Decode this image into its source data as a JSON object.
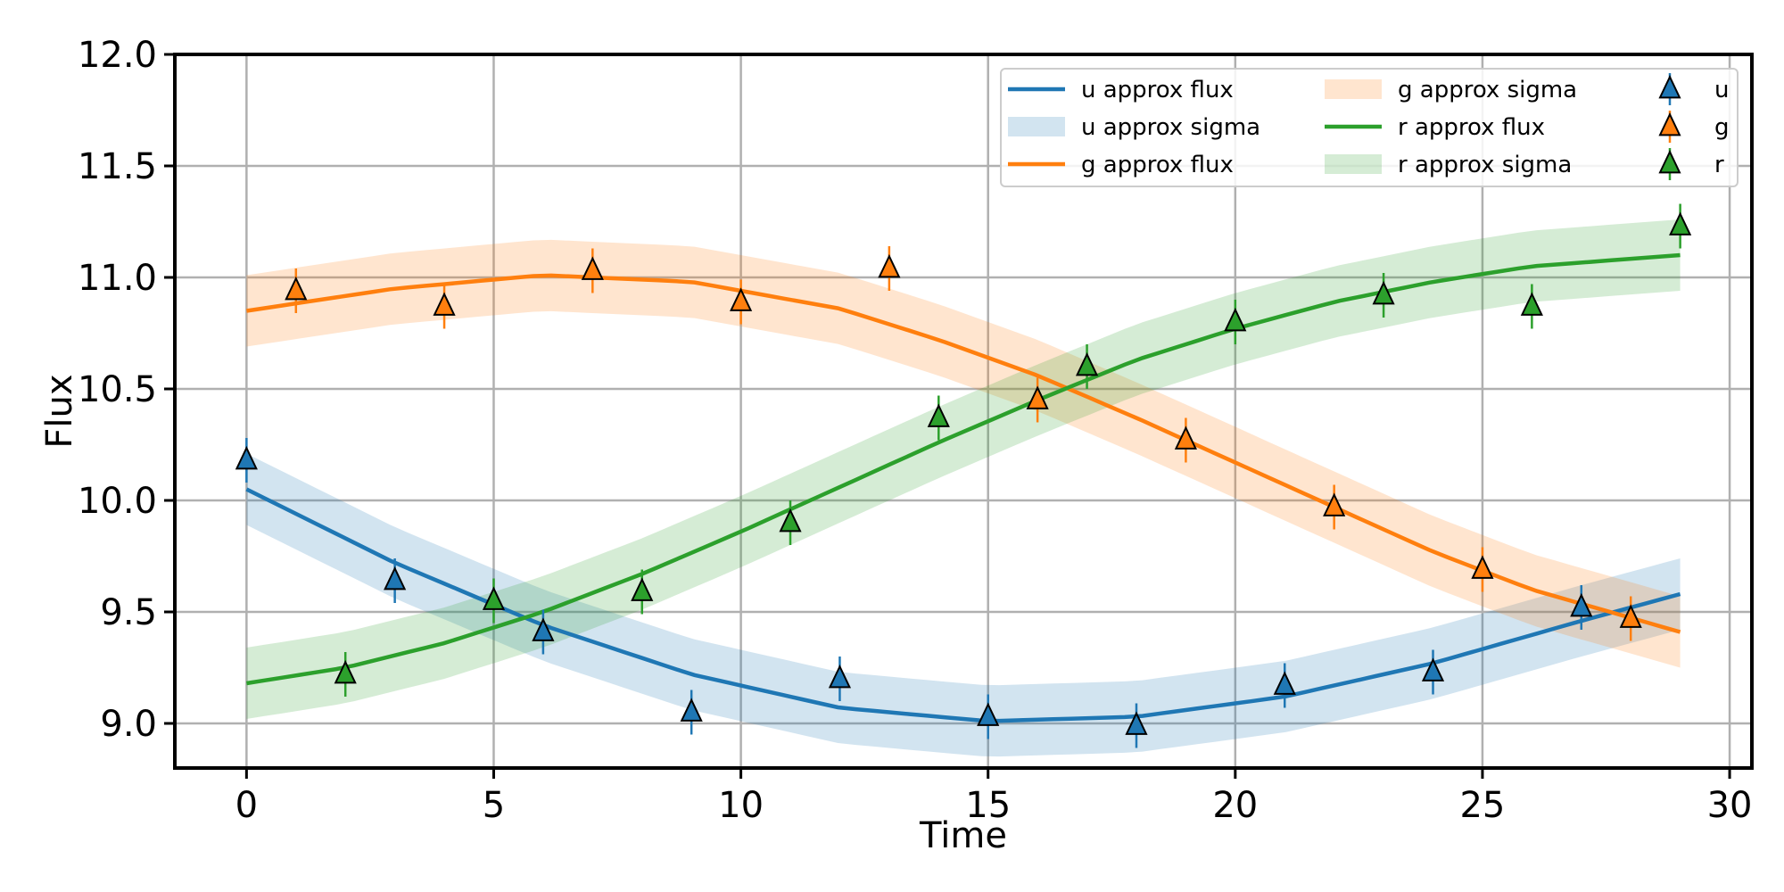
{
  "chart_data": {
    "type": "line",
    "title": "",
    "xlabel": "Time",
    "ylabel": "Flux",
    "xlim": [
      -1.45,
      30.45
    ],
    "ylim": [
      8.8,
      12.0
    ],
    "xticks": [
      0,
      5,
      10,
      15,
      20,
      25,
      30
    ],
    "yticks": [
      9.0,
      9.5,
      10.0,
      10.5,
      11.0,
      11.5,
      12.0
    ],
    "xtick_labels": [
      "0",
      "5",
      "10",
      "15",
      "20",
      "25",
      "30"
    ],
    "ytick_labels": [
      "9.0",
      "9.5",
      "10.0",
      "10.5",
      "11.0",
      "11.5",
      "12.0"
    ],
    "grid": true,
    "legend_position": "top-right",
    "sigma": 0.16,
    "error_bar": 0.1,
    "series": [
      {
        "name": "u",
        "color": "#1f77b4",
        "flux_label": "u approx flux",
        "sigma_label": "u approx sigma",
        "points_label": "u",
        "model": {
          "x": [
            0,
            3,
            6,
            9,
            12,
            15,
            18,
            21,
            24,
            27,
            29
          ],
          "y": [
            10.05,
            9.72,
            9.44,
            9.22,
            9.07,
            9.01,
            9.03,
            9.12,
            9.27,
            9.46,
            9.58
          ]
        },
        "points": {
          "x": [
            0,
            3,
            6,
            9,
            12,
            15,
            18,
            21,
            24,
            27
          ],
          "y": [
            10.18,
            9.64,
            9.41,
            9.05,
            9.2,
            9.03,
            8.99,
            9.17,
            9.23,
            9.52
          ]
        }
      },
      {
        "name": "g",
        "color": "#ff7f0e",
        "flux_label": "g approx flux",
        "sigma_label": "g approx sigma",
        "points_label": "g",
        "model": {
          "x": [
            0,
            3,
            6,
            9,
            12,
            14,
            16,
            18,
            20,
            22,
            24,
            26,
            29
          ],
          "y": [
            10.85,
            10.95,
            11.01,
            10.98,
            10.86,
            10.72,
            10.56,
            10.37,
            10.17,
            9.97,
            9.77,
            9.6,
            9.41
          ]
        },
        "points": {
          "x": [
            1,
            4,
            7,
            10,
            13,
            16,
            19,
            22,
            25,
            28
          ],
          "y": [
            10.94,
            10.87,
            11.03,
            10.89,
            11.04,
            10.45,
            10.27,
            9.97,
            9.69,
            9.47
          ]
        }
      },
      {
        "name": "r",
        "color": "#2ca02c",
        "flux_label": "r approx flux",
        "sigma_label": "r approx sigma",
        "points_label": "r",
        "model": {
          "x": [
            0,
            2,
            4,
            6,
            8,
            10,
            12,
            14,
            16,
            18,
            20,
            22,
            24,
            26,
            29
          ],
          "y": [
            9.18,
            9.25,
            9.36,
            9.5,
            9.67,
            9.86,
            10.06,
            10.26,
            10.45,
            10.63,
            10.77,
            10.89,
            10.98,
            11.05,
            11.1
          ]
        },
        "points": {
          "x": [
            2,
            5,
            8,
            11,
            14,
            17,
            20,
            23,
            26,
            29
          ],
          "y": [
            9.22,
            9.55,
            9.59,
            9.9,
            10.37,
            10.6,
            10.8,
            10.92,
            10.87,
            11.23
          ]
        }
      }
    ]
  }
}
